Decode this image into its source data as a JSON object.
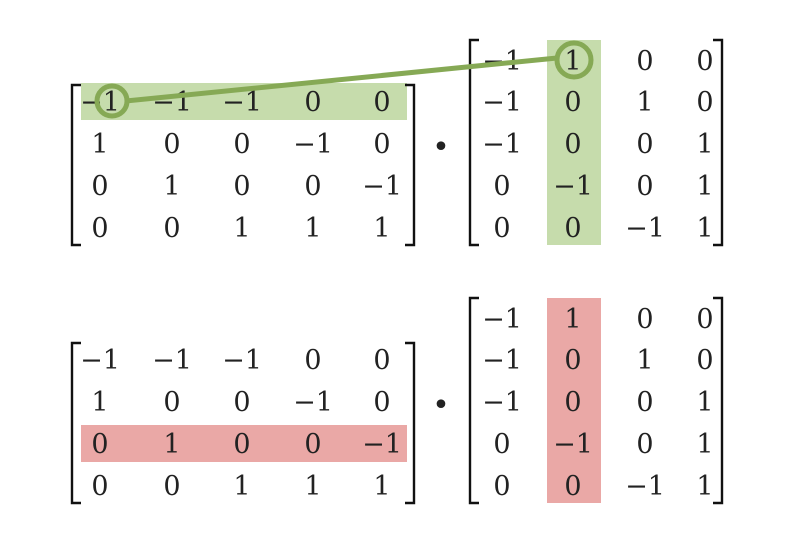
{
  "colors": {
    "highlight_green": "#c6dcac",
    "connector_green": "#86a955",
    "highlight_red": "#eaa8a6"
  },
  "operator": "•",
  "panels": [
    {
      "left_matrix": [
        [
          "−1",
          "−1",
          "−1",
          "0",
          "0"
        ],
        [
          "1",
          "0",
          "0",
          "−1",
          "0"
        ],
        [
          "0",
          "1",
          "0",
          "0",
          "−1"
        ],
        [
          "0",
          "0",
          "1",
          "1",
          "1"
        ]
      ],
      "right_matrix": [
        [
          "−1",
          "1",
          "0",
          "0"
        ],
        [
          "−1",
          "0",
          "1",
          "0"
        ],
        [
          "−1",
          "0",
          "0",
          "1"
        ],
        [
          "0",
          "−1",
          "0",
          "1"
        ],
        [
          "0",
          "0",
          "−1",
          "1"
        ]
      ],
      "highlight_row": 0,
      "highlight_col": 1,
      "highlight_color": "green",
      "connector": true
    },
    {
      "left_matrix": [
        [
          "−1",
          "−1",
          "−1",
          "0",
          "0"
        ],
        [
          "1",
          "0",
          "0",
          "−1",
          "0"
        ],
        [
          "0",
          "1",
          "0",
          "0",
          "−1"
        ],
        [
          "0",
          "0",
          "1",
          "1",
          "1"
        ]
      ],
      "right_matrix": [
        [
          "−1",
          "1",
          "0",
          "0"
        ],
        [
          "−1",
          "0",
          "1",
          "0"
        ],
        [
          "−1",
          "0",
          "0",
          "1"
        ],
        [
          "0",
          "−1",
          "0",
          "1"
        ],
        [
          "0",
          "0",
          "−1",
          "1"
        ]
      ],
      "highlight_row": 2,
      "highlight_col": 1,
      "highlight_color": "red",
      "connector": false
    }
  ]
}
